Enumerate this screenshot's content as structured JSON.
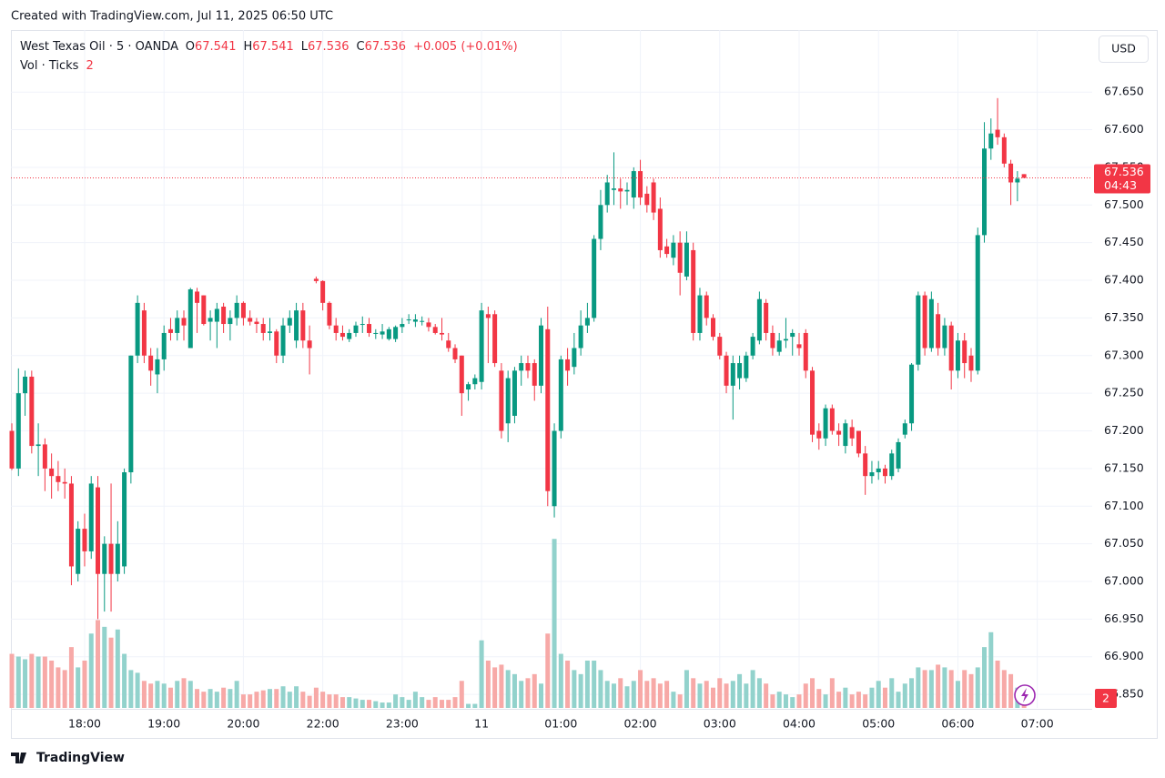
{
  "page": {
    "header_text": "Created with TradingView.com, Jul 11, 2025 06:50 UTC",
    "footer_text": "TradingView"
  },
  "chart_data": {
    "type": "candlestick",
    "symbol": "West Texas Oil · 5 · OANDA",
    "ohlc_labels": [
      "O",
      "H",
      "L",
      "C"
    ],
    "change": "+0.005 (+0.01%)",
    "volume_label": "Vol · Ticks",
    "currency": "USD",
    "countdown": "04:43",
    "up_color": "#089981",
    "down_color": "#f23645",
    "up_volume_color": "#92d2cc",
    "down_volume_color": "#f7a9a7",
    "grid": true,
    "xlim": [
      -0.14,
      163.3
    ],
    "ylim": [
      66.832,
      67.73
    ],
    "vlim": [
      0,
      500
    ],
    "yticks": [
      {
        "value": 66.85,
        "label": "66.850"
      },
      {
        "value": 66.9,
        "label": "66.900"
      },
      {
        "value": 66.95,
        "label": "66.950"
      },
      {
        "value": 67.0,
        "label": "67.000"
      },
      {
        "value": 67.05,
        "label": "67.050"
      },
      {
        "value": 67.1,
        "label": "67.100"
      },
      {
        "value": 67.15,
        "label": "67.150"
      },
      {
        "value": 67.2,
        "label": "67.200"
      },
      {
        "value": 67.25,
        "label": "67.250"
      },
      {
        "value": 67.3,
        "label": "67.300"
      },
      {
        "value": 67.35,
        "label": "67.350"
      },
      {
        "value": 67.4,
        "label": "67.400"
      },
      {
        "value": 67.45,
        "label": "67.450"
      },
      {
        "value": 67.5,
        "label": "67.500"
      },
      {
        "value": 67.55,
        "label": "67.550"
      },
      {
        "value": 67.6,
        "label": "67.600"
      },
      {
        "value": 67.65,
        "label": "67.650"
      }
    ],
    "xticks": [
      {
        "value": 11,
        "label": "18:00"
      },
      {
        "value": 23,
        "label": "19:00"
      },
      {
        "value": 35,
        "label": "20:00"
      },
      {
        "value": 47,
        "label": "22:00"
      },
      {
        "value": 59,
        "label": "23:00"
      },
      {
        "value": 71,
        "label": "11"
      },
      {
        "value": 83,
        "label": "01:00"
      },
      {
        "value": 95,
        "label": "02:00"
      },
      {
        "value": 107,
        "label": "03:00"
      },
      {
        "value": 119,
        "label": "04:00"
      },
      {
        "value": 131,
        "label": "05:00"
      },
      {
        "value": 143,
        "label": "06:00"
      },
      {
        "value": 155,
        "label": "07:00"
      }
    ],
    "open": [
      67.2,
      67.15,
      67.25,
      67.272,
      67.18,
      67.182,
      67.15,
      67.14,
      67.132,
      67.13,
      67.01,
      67.07,
      67.04,
      67.125,
      67.01,
      67.05,
      67.01,
      67.02,
      67.145,
      67.3,
      67.36,
      67.3,
      67.275,
      67.295,
      67.335,
      67.33,
      67.35,
      67.31,
      67.385,
      67.38,
      67.345,
      67.345,
      67.365,
      67.342,
      67.35,
      67.37,
      67.35,
      67.345,
      67.342,
      67.33,
      67.332,
      67.3,
      67.34,
      67.32,
      67.36,
      67.32,
      67.402,
      67.399,
      67.37,
      67.34,
      67.33,
      67.322,
      67.33,
      67.342,
      67.342,
      67.33,
      67.328,
      67.322,
      67.322,
      67.338,
      67.348,
      67.345,
      67.346,
      67.344,
      67.338,
      67.33,
      67.32,
      67.31,
      67.3,
      67.255,
      67.262,
      67.265,
      67.355,
      67.355,
      67.28,
      67.21,
      67.22,
      67.28,
      67.29,
      67.29,
      67.26,
      67.335,
      67.1,
      67.2,
      67.295,
      67.285,
      67.31,
      67.34,
      67.35,
      67.455,
      67.5,
      67.52,
      67.522,
      67.518,
      67.51,
      67.545,
      67.515,
      67.53,
      67.495,
      67.445,
      67.43,
      67.45,
      67.405,
      67.44,
      67.33,
      67.38,
      67.35,
      67.325,
      67.3,
      67.26,
      67.27,
      67.27,
      67.3,
      67.32,
      67.37,
      67.33,
      67.305,
      67.32,
      67.325,
      67.315,
      67.33,
      67.28,
      67.2,
      67.19,
      67.23,
      67.2,
      67.18,
      67.205,
      67.2,
      67.17,
      67.14,
      67.145,
      67.15,
      67.14,
      67.15,
      67.195,
      67.21,
      67.288,
      67.38,
      67.31,
      67.355,
      67.31,
      67.34,
      67.28,
      67.32,
      67.3,
      67.28,
      67.46,
      67.575,
      67.6,
      67.59,
      67.555,
      67.53,
      67.541
    ],
    "high": [
      67.21,
      67.283,
      67.28,
      67.28,
      67.21,
      67.19,
      67.17,
      67.16,
      67.15,
      67.14,
      67.08,
      67.09,
      67.14,
      67.14,
      67.06,
      67.13,
      67.08,
      67.15,
      67.3,
      67.38,
      67.37,
      67.31,
      67.31,
      67.34,
      67.35,
      67.36,
      67.36,
      67.39,
      67.39,
      67.38,
      67.36,
      67.37,
      67.37,
      67.36,
      67.38,
      67.372,
      67.36,
      67.35,
      67.35,
      67.35,
      67.335,
      67.35,
      67.36,
      67.37,
      67.37,
      67.34,
      67.405,
      67.4,
      67.372,
      67.35,
      67.34,
      67.335,
      67.345,
      67.352,
      67.35,
      67.335,
      67.342,
      67.338,
      67.34,
      67.35,
      67.355,
      67.355,
      67.352,
      67.35,
      67.342,
      67.35,
      67.33,
      67.315,
      67.3,
      67.265,
      67.275,
      67.37,
      67.365,
      67.36,
      67.29,
      67.28,
      67.285,
      67.3,
      67.3,
      67.295,
      67.35,
      67.365,
      67.21,
      67.3,
      67.31,
      67.33,
      67.36,
      67.37,
      67.46,
      67.52,
      67.54,
      67.57,
      67.535,
      67.53,
      67.55,
      67.56,
      67.525,
      67.535,
      67.51,
      67.455,
      67.46,
      67.465,
      67.465,
      67.45,
      67.39,
      67.385,
      67.355,
      67.33,
      67.305,
      67.3,
      67.3,
      67.305,
      67.33,
      67.385,
      67.375,
      67.34,
      67.33,
      67.35,
      67.335,
      67.33,
      67.335,
      67.285,
      67.21,
      67.235,
      67.235,
      67.21,
      67.215,
      67.215,
      67.2,
      67.18,
      67.16,
      67.16,
      67.155,
      67.175,
      67.19,
      67.215,
      67.29,
      67.385,
      67.385,
      67.385,
      67.37,
      67.35,
      67.345,
      67.33,
      67.33,
      67.31,
      67.47,
      67.61,
      67.615,
      67.642,
      67.595,
      67.56,
      67.545,
      67.541
    ],
    "low": [
      67.148,
      67.14,
      67.22,
      67.17,
      67.14,
      67.12,
      67.11,
      67.12,
      67.11,
      66.995,
      67.0,
      67.02,
      67.03,
      66.95,
      66.96,
      66.96,
      67.0,
      67.01,
      67.13,
      67.29,
      67.29,
      67.26,
      67.25,
      67.28,
      67.32,
      67.32,
      67.32,
      67.31,
      67.33,
      67.34,
      67.32,
      67.31,
      67.33,
      67.32,
      67.34,
      67.34,
      67.34,
      67.33,
      67.32,
      67.32,
      67.29,
      67.29,
      67.33,
      67.31,
      67.31,
      67.275,
      67.396,
      67.36,
      67.335,
      67.32,
      67.32,
      67.318,
      67.325,
      67.33,
      67.325,
      67.322,
      67.322,
      67.32,
      67.318,
      67.33,
      67.342,
      67.338,
      67.34,
      67.332,
      67.328,
      67.32,
      67.305,
      67.29,
      67.22,
      67.24,
      67.255,
      67.255,
      67.29,
      67.285,
      67.19,
      67.185,
      67.21,
      67.26,
      67.27,
      67.24,
      67.25,
      67.1,
      67.085,
      67.19,
      67.26,
      67.275,
      67.3,
      67.33,
      67.345,
      67.44,
      67.49,
      67.5,
      67.495,
      67.5,
      67.495,
      67.5,
      67.49,
      67.48,
      67.43,
      67.43,
      67.42,
      67.38,
      67.4,
      67.32,
      67.32,
      67.34,
      67.32,
      67.295,
      67.25,
      67.215,
      67.255,
      67.265,
      67.295,
      67.315,
      67.32,
      67.3,
      67.3,
      67.31,
      67.3,
      67.3,
      67.27,
      67.185,
      67.175,
      67.18,
      67.195,
      67.18,
      67.17,
      67.18,
      67.165,
      67.115,
      67.13,
      67.135,
      67.13,
      67.135,
      67.145,
      67.19,
      67.2,
      67.28,
      67.3,
      67.305,
      67.3,
      67.3,
      67.255,
      67.27,
      67.27,
      67.265,
      67.275,
      67.45,
      67.56,
      67.58,
      67.55,
      67.5,
      67.505,
      67.536
    ],
    "close": [
      67.15,
      67.25,
      67.272,
      67.18,
      67.182,
      67.15,
      67.14,
      67.132,
      67.13,
      67.02,
      67.07,
      67.04,
      67.13,
      67.01,
      67.05,
      67.01,
      67.05,
      67.145,
      67.3,
      67.37,
      67.3,
      67.28,
      67.295,
      67.33,
      67.33,
      67.35,
      67.34,
      67.388,
      67.37,
      67.342,
      67.35,
      67.362,
      67.342,
      67.35,
      67.37,
      67.35,
      67.345,
      67.342,
      67.33,
      67.332,
      67.3,
      67.34,
      67.35,
      67.36,
      67.32,
      67.31,
      67.399,
      67.37,
      67.34,
      67.33,
      67.325,
      67.33,
      67.34,
      67.342,
      67.33,
      67.33,
      67.332,
      67.335,
      67.338,
      67.342,
      67.348,
      67.348,
      67.346,
      67.338,
      67.33,
      67.328,
      67.31,
      67.295,
      67.25,
      67.262,
      67.27,
      67.36,
      67.35,
      67.29,
      67.2,
      67.27,
      67.28,
      67.29,
      67.28,
      67.26,
      67.34,
      67.12,
      67.2,
      67.295,
      67.28,
      67.31,
      67.34,
      67.35,
      67.455,
      67.5,
      67.53,
      67.522,
      67.518,
      67.52,
      67.545,
      67.51,
      67.5,
      67.49,
      67.44,
      67.435,
      67.45,
      67.41,
      67.45,
      67.33,
      67.38,
      67.35,
      67.325,
      67.3,
      67.26,
      67.29,
      67.29,
      67.3,
      67.325,
      67.375,
      67.33,
      67.31,
      67.32,
      67.322,
      67.33,
      67.31,
      67.28,
      67.195,
      67.19,
      67.23,
      67.2,
      67.195,
      67.21,
      67.19,
      67.17,
      67.14,
      67.145,
      67.15,
      67.14,
      67.17,
      67.185,
      67.21,
      67.288,
      67.38,
      67.31,
      67.375,
      67.31,
      67.34,
      67.28,
      67.32,
      67.29,
      67.28,
      67.46,
      67.575,
      67.595,
      67.59,
      67.555,
      67.53,
      67.535,
      67.536
    ],
    "volume": [
      40,
      38,
      36,
      40,
      38,
      38,
      35,
      30,
      28,
      45,
      30,
      35,
      55,
      65,
      60,
      52,
      58,
      40,
      28,
      26,
      20,
      18,
      20,
      18,
      15,
      20,
      22,
      20,
      14,
      12,
      14,
      12,
      15,
      14,
      20,
      10,
      10,
      12,
      13,
      14,
      14,
      16,
      12,
      16,
      12,
      9,
      15,
      12,
      10,
      10,
      8,
      8,
      7,
      6,
      6,
      5,
      4,
      4,
      10,
      8,
      6,
      12,
      8,
      6,
      8,
      6,
      6,
      8,
      20,
      3,
      3,
      50,
      35,
      30,
      32,
      28,
      25,
      20,
      22,
      25,
      18,
      55,
      125,
      40,
      35,
      28,
      25,
      35,
      35,
      28,
      20,
      18,
      22,
      16,
      20,
      28,
      20,
      22,
      18,
      20,
      12,
      10,
      28,
      22,
      18,
      20,
      15,
      22,
      18,
      20,
      25,
      18,
      28,
      22,
      18,
      10,
      12,
      10,
      8,
      10,
      18,
      22,
      14,
      10,
      22,
      12,
      15,
      10,
      12,
      10,
      15,
      20,
      15,
      22,
      12,
      18,
      22,
      30,
      28,
      28,
      32,
      30,
      28,
      20,
      28,
      25,
      30,
      45,
      56,
      35,
      28,
      25,
      15,
      2
    ]
  }
}
